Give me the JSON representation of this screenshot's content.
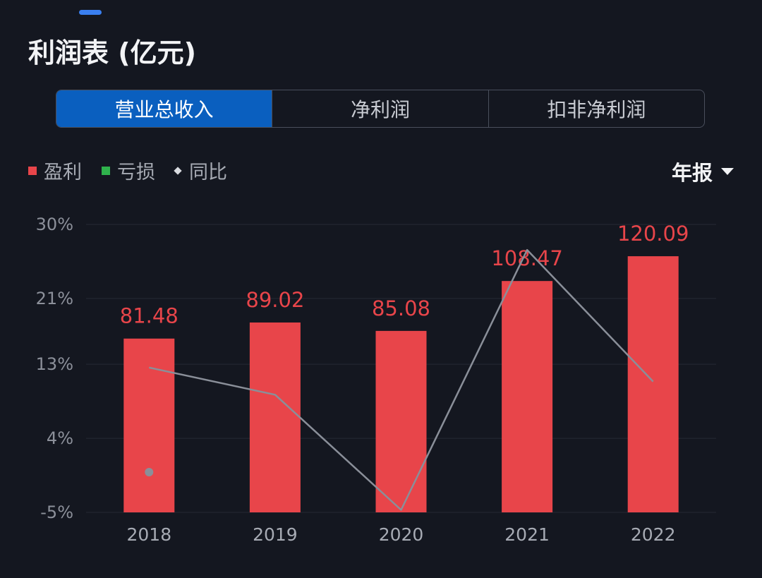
{
  "header": {
    "title": "利润表 (亿元)"
  },
  "tabs": [
    {
      "label": "营业总收入",
      "active": true
    },
    {
      "label": "净利润",
      "active": false
    },
    {
      "label": "扣非净利润",
      "active": false
    }
  ],
  "legend": {
    "profit": "盈利",
    "loss": "亏损",
    "yoy": "同比"
  },
  "period_selector": {
    "label": "年报"
  },
  "colors": {
    "profit": "#e8454a",
    "loss": "#2fb24c",
    "yoy_line": "#8a8f99",
    "active_tab": "#0a5fbf"
  },
  "chart_data": {
    "type": "bar",
    "categories": [
      "2018",
      "2019",
      "2020",
      "2021",
      "2022"
    ],
    "values": [
      81.48,
      89.02,
      85.08,
      108.47,
      120.09
    ],
    "value_labels": [
      "81.48",
      "89.02",
      "85.08",
      "108.47",
      "120.09"
    ],
    "bar_axis_range": [
      0,
      135
    ],
    "yoy_series": {
      "type": "line",
      "values": [
        12.6,
        9.3,
        -4.7,
        26.9,
        10.9
      ]
    },
    "y_ticks": [
      "30%",
      "21%",
      "13%",
      "4%",
      "-5%"
    ],
    "y_tick_values": [
      30,
      21,
      13,
      4,
      -5
    ],
    "ylim": [
      -5,
      30
    ],
    "grid": true
  }
}
